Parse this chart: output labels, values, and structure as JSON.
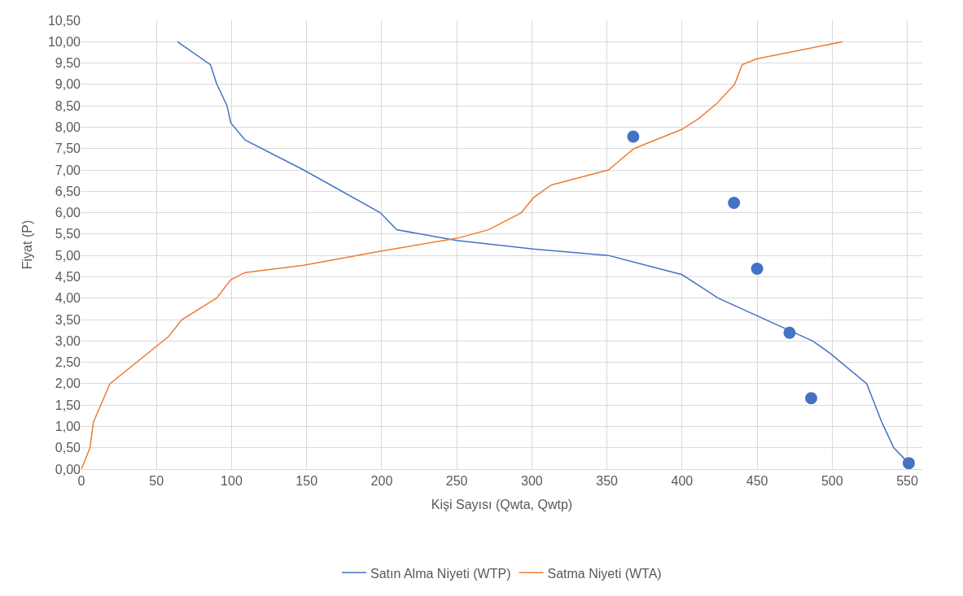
{
  "chart_data": {
    "type": "line",
    "xlabel": "Kişi Sayısı (Qwta, Qwtp)",
    "ylabel": "Fiyat (P)",
    "series": [
      {
        "name": "Satın Alma Niyeti (WTP)",
        "color": "#4472c4",
        "x": [
          64,
          86,
          90,
          97,
          99.5,
          109,
          148,
          199,
          210,
          250,
          301,
          351,
          400,
          411,
          424,
          487,
          499,
          523,
          533,
          541,
          551
        ],
        "values": [
          10.0,
          9.46,
          9.02,
          8.5,
          8.1,
          7.7,
          7.0,
          6.0,
          5.6,
          5.35,
          5.15,
          5.0,
          4.55,
          4.3,
          4.0,
          3.0,
          2.7,
          2.0,
          1.1,
          0.5,
          0.14
        ]
      },
      {
        "name": "Satma Niyeti (WTA)",
        "color": "#ed7d31",
        "x": [
          0,
          5.7,
          8,
          19,
          58,
          67,
          90,
          99.5,
          109,
          148,
          199,
          250,
          271,
          293,
          301,
          313,
          351,
          368,
          400,
          411,
          423,
          435,
          440,
          450,
          507
        ],
        "values": [
          0,
          0.5,
          1.1,
          2.0,
          3.1,
          3.5,
          4.0,
          4.43,
          4.6,
          4.77,
          5.1,
          5.4,
          5.6,
          6.0,
          6.35,
          6.65,
          7.0,
          7.5,
          7.95,
          8.2,
          8.55,
          9.0,
          9.46,
          9.6,
          10.0
        ]
      },
      {
        "type": "scatter",
        "color": "#4472c4",
        "marker": "circle",
        "x": [
          367.5,
          434.6,
          450,
          471.6,
          486,
          551
        ],
        "values": [
          7.78,
          6.23,
          4.69,
          3.19,
          1.66,
          0.14
        ]
      }
    ],
    "xlim": [
      0,
      560
    ],
    "xticks": [
      0,
      50,
      100,
      150,
      200,
      250,
      300,
      350,
      400,
      450,
      500,
      550
    ],
    "ylim": [
      0,
      10.5
    ],
    "yticks": [
      {
        "value": 0,
        "label": "0,00"
      },
      {
        "value": 0.5,
        "label": "0,50"
      },
      {
        "value": 1,
        "label": "1,00"
      },
      {
        "value": 1.5,
        "label": "1,50"
      },
      {
        "value": 2,
        "label": "2,00"
      },
      {
        "value": 2.5,
        "label": "2,50"
      },
      {
        "value": 3,
        "label": "3,00"
      },
      {
        "value": 3.5,
        "label": "3,50"
      },
      {
        "value": 4,
        "label": "4,00"
      },
      {
        "value": 4.5,
        "label": "4,50"
      },
      {
        "value": 5,
        "label": "5,00"
      },
      {
        "value": 5.5,
        "label": "5,50"
      },
      {
        "value": 6,
        "label": "6,00"
      },
      {
        "value": 6.5,
        "label": "6,50"
      },
      {
        "value": 7,
        "label": "7,00"
      },
      {
        "value": 7.5,
        "label": "7,50"
      },
      {
        "value": 8,
        "label": "8,00"
      },
      {
        "value": 8.5,
        "label": "8,50"
      },
      {
        "value": 9,
        "label": "9,00"
      },
      {
        "value": 9.5,
        "label": "9,50"
      },
      {
        "value": 10,
        "label": "10,00"
      },
      {
        "value": 10.5,
        "label": "10,50"
      }
    ],
    "grid": true,
    "legend": "bottom",
    "line_style": "solid",
    "marker": "none"
  }
}
